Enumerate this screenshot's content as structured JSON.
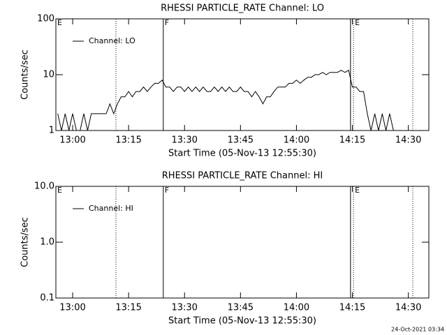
{
  "chart_data": [
    {
      "type": "line",
      "title": "RHESSI PARTICLE_RATE Channel: LO",
      "xlabel": "Start Time (05-Nov-13 12:55:30)",
      "ylabel": "Counts/sec",
      "log_y": true,
      "legend": "top-left",
      "xlim": [
        775.5,
        875.5
      ],
      "xticks": [
        {
          "value": 780,
          "label": "13:00"
        },
        {
          "value": 795,
          "label": "13:15"
        },
        {
          "value": 810,
          "label": "13:30"
        },
        {
          "value": 825,
          "label": "13:45"
        },
        {
          "value": 840,
          "label": "14:00"
        },
        {
          "value": 855,
          "label": "14:15"
        },
        {
          "value": 870,
          "label": "14:30"
        }
      ],
      "ylim": [
        1,
        100
      ],
      "yticks": [
        1,
        10,
        100
      ],
      "vlines": [
        {
          "x": 791.6,
          "style": "dotted"
        },
        {
          "x": 804.3,
          "style": "solid"
        },
        {
          "x": 854.5,
          "style": "solid"
        },
        {
          "x": 855.3,
          "style": "dotted"
        },
        {
          "x": 871.2,
          "style": "dotted"
        }
      ],
      "annotations": [
        {
          "x": 775.5,
          "text": "E"
        },
        {
          "x": 804.3,
          "text": "F"
        },
        {
          "x": 855.3,
          "text": "E"
        }
      ],
      "x": [
        776,
        777,
        778,
        779,
        780,
        781,
        782,
        783,
        784,
        785,
        786,
        787,
        788,
        789,
        790,
        791,
        792,
        793,
        794,
        795,
        796,
        797,
        798,
        799,
        800,
        801,
        802,
        803,
        804,
        805,
        806,
        807,
        808,
        809,
        810,
        811,
        812,
        813,
        814,
        815,
        816,
        817,
        818,
        819,
        820,
        821,
        822,
        823,
        824,
        825,
        826,
        827,
        828,
        829,
        830,
        831,
        832,
        833,
        834,
        835,
        836,
        837,
        838,
        839,
        840,
        841,
        842,
        843,
        844,
        845,
        846,
        847,
        848,
        849,
        850,
        851,
        852,
        853,
        854,
        855,
        856,
        857,
        858,
        859,
        860,
        861,
        862,
        863,
        864,
        865,
        866
      ],
      "series": [
        {
          "name": "Channel: LO",
          "color": "#000000",
          "values": [
            2,
            1,
            2,
            1,
            2,
            1,
            1,
            2,
            1,
            2,
            2,
            2,
            2,
            2,
            3,
            2,
            3,
            4,
            4,
            5,
            4,
            5,
            5,
            6,
            5,
            6,
            7,
            7,
            8,
            6,
            6,
            5,
            6,
            6,
            5,
            6,
            5,
            6,
            5,
            6,
            5,
            5,
            6,
            5,
            6,
            5,
            6,
            5,
            5,
            6,
            5,
            5,
            4,
            5,
            4,
            3,
            4,
            4,
            5,
            6,
            6,
            6,
            7,
            7,
            8,
            7,
            8,
            9,
            9,
            10,
            10,
            11,
            10,
            11,
            11,
            11,
            12,
            11,
            12,
            6,
            6,
            5,
            5,
            2,
            1,
            2,
            1,
            2,
            1,
            2,
            1
          ]
        }
      ]
    },
    {
      "type": "line",
      "title": "RHESSI PARTICLE_RATE Channel: HI",
      "xlabel": "Start Time (05-Nov-13 12:55:30)",
      "ylabel": "Counts/sec",
      "log_y": true,
      "legend": "top-left",
      "xlim": [
        775.5,
        875.5
      ],
      "xticks": [
        {
          "value": 780,
          "label": "13:00"
        },
        {
          "value": 795,
          "label": "13:15"
        },
        {
          "value": 810,
          "label": "13:30"
        },
        {
          "value": 825,
          "label": "13:45"
        },
        {
          "value": 840,
          "label": "14:00"
        },
        {
          "value": 855,
          "label": "14:15"
        },
        {
          "value": 870,
          "label": "14:30"
        }
      ],
      "ylim": [
        0.1,
        10
      ],
      "yticks": [
        0.1,
        {
          "value": 1,
          "label": "1.0"
        },
        {
          "value": 10,
          "label": "10.0"
        }
      ],
      "vlines": [
        {
          "x": 791.6,
          "style": "dotted"
        },
        {
          "x": 804.3,
          "style": "solid"
        },
        {
          "x": 854.5,
          "style": "solid"
        },
        {
          "x": 855.3,
          "style": "dotted"
        },
        {
          "x": 871.2,
          "style": "dotted"
        }
      ],
      "annotations": [
        {
          "x": 775.5,
          "text": "E"
        },
        {
          "x": 804.3,
          "text": "F"
        },
        {
          "x": 855.3,
          "text": "E"
        }
      ],
      "x": [],
      "series": [
        {
          "name": "Channel: HI",
          "color": "#000000",
          "values": []
        }
      ]
    }
  ],
  "footer": "24-Oct-2021 03:34"
}
